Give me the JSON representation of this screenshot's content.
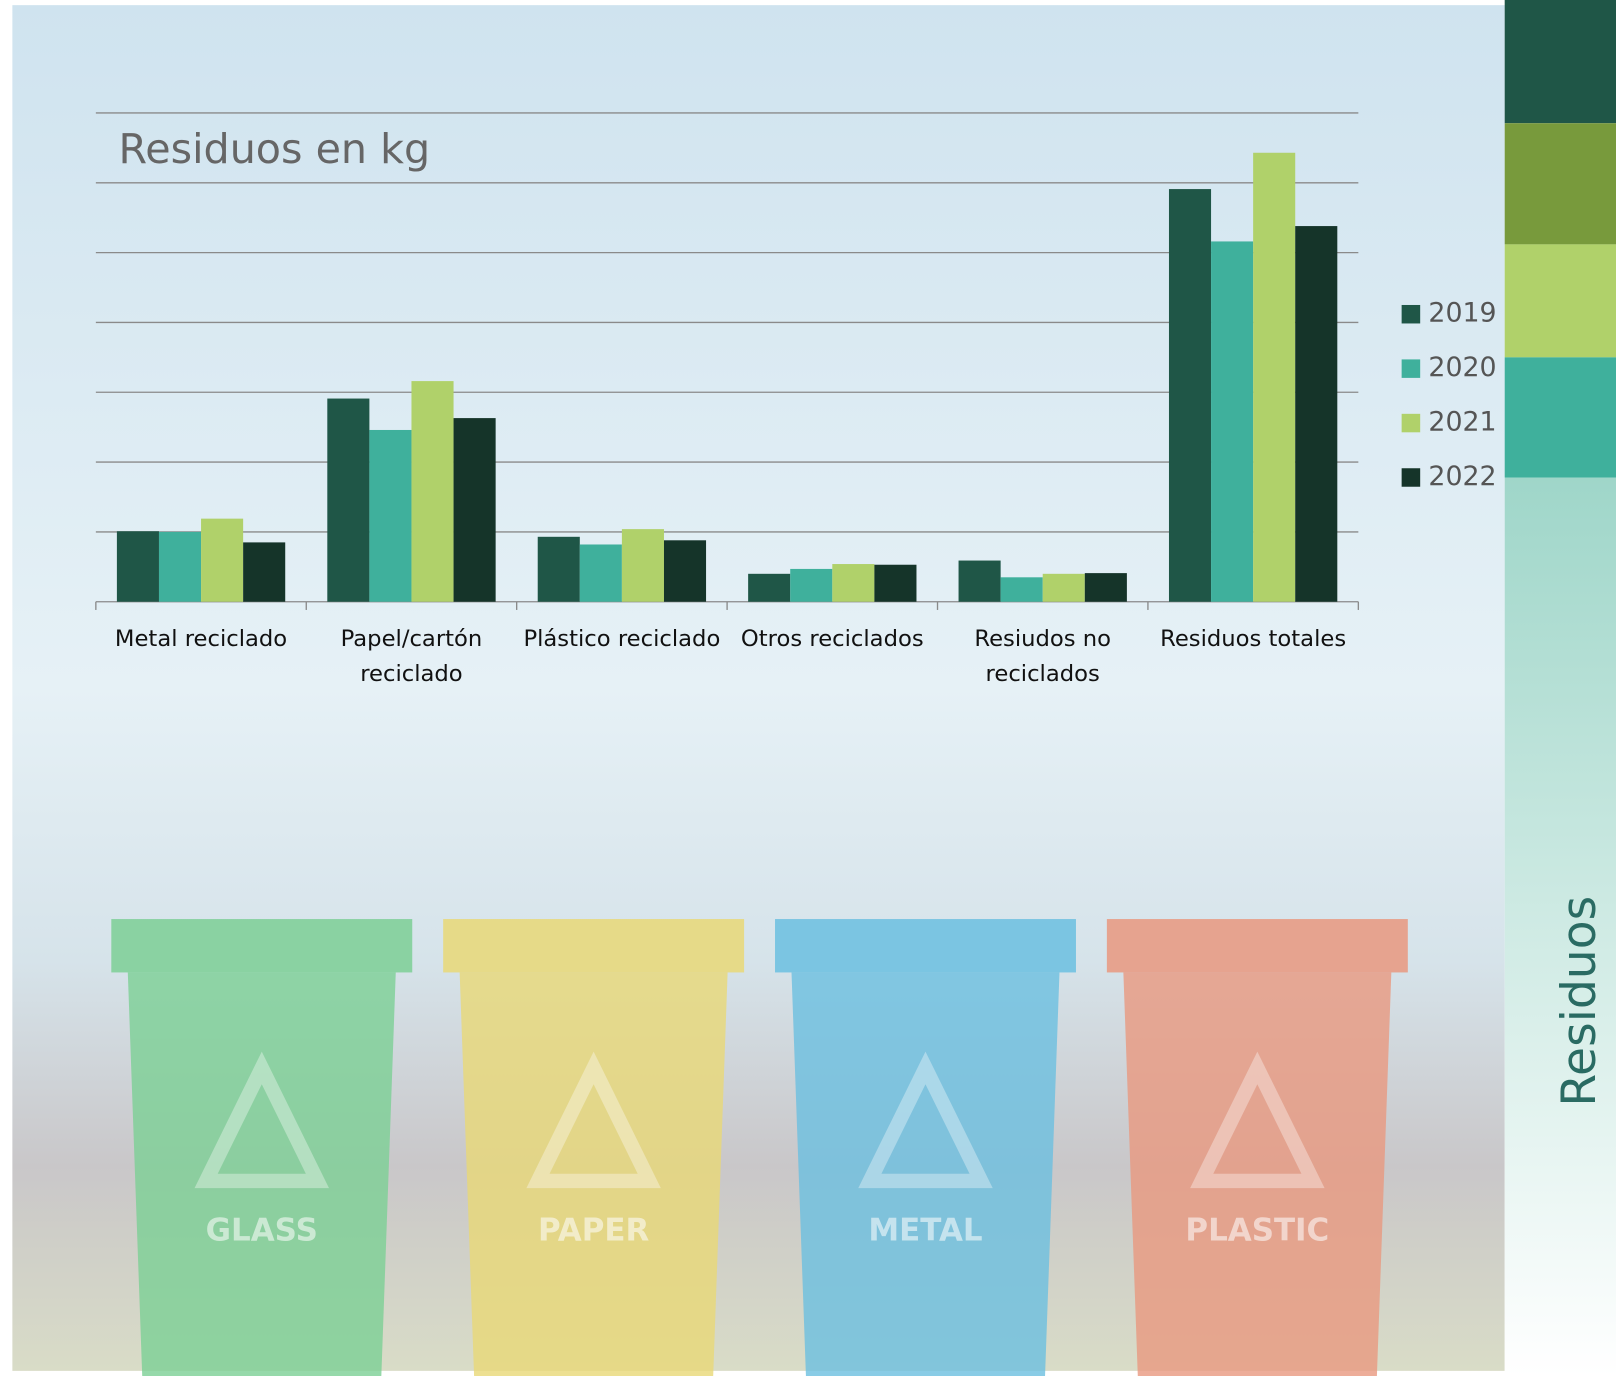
{
  "chart_data": {
    "type": "bar",
    "title": "Residuos en kg",
    "categories": [
      "Metal reciclado",
      "Papel/cartón reciclado",
      "Plástico reciclado",
      "Otros reciclados",
      "Resiudos no reciclados",
      "Residuos totales"
    ],
    "series": [
      {
        "name": "2019",
        "color": "#1f5647",
        "values": [
          1.01,
          2.91,
          0.93,
          0.4,
          0.59,
          5.91
        ]
      },
      {
        "name": "2020",
        "color": "#3fb09c",
        "values": [
          1.0,
          2.46,
          0.82,
          0.47,
          0.35,
          5.16
        ]
      },
      {
        "name": "2021",
        "color": "#b0d16a",
        "values": [
          1.19,
          3.16,
          1.04,
          0.54,
          0.4,
          6.43
        ]
      },
      {
        "name": "2022",
        "color": "#153429",
        "values": [
          0.85,
          2.63,
          0.88,
          0.53,
          0.41,
          5.38
        ]
      }
    ],
    "ylim": [
      0,
      7
    ],
    "yticks": [
      0,
      1,
      2,
      3,
      4,
      5,
      6,
      7
    ],
    "grid": true,
    "legend": "right"
  },
  "sidebar": {
    "title": "Residuos"
  },
  "bins": [
    {
      "label": "GLASS",
      "color": "#7ccf95"
    },
    {
      "label": "PAPER",
      "color": "#e9d877"
    },
    {
      "label": "METAL",
      "color": "#6bbfe0"
    },
    {
      "label": "PLASTIC",
      "color": "#e9987f"
    }
  ]
}
